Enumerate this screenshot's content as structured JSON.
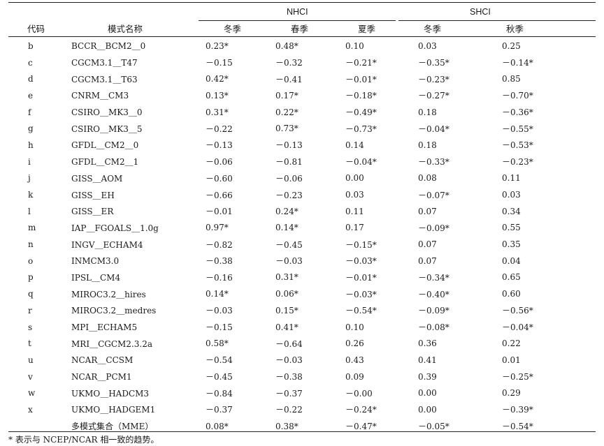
{
  "header": {
    "group_nhci": "NHCI",
    "group_shci": "SHCI",
    "col_code": "代码",
    "col_model": "模式名称",
    "nhci_winter": "冬季",
    "nhci_spring": "春季",
    "nhci_summer": "夏季",
    "shci_winter": "冬季",
    "shci_autumn": "秋季"
  },
  "rows": [
    {
      "code": "b",
      "model": "BCCR＿BCM2＿0",
      "v": [
        "0.23*",
        "0.48*",
        "0.10",
        "0.03",
        "0.25"
      ]
    },
    {
      "code": "c",
      "model": "CGCM3.1＿T47",
      "v": [
        "－0.15",
        "－0.32",
        "－0.21*",
        "－0.35*",
        "－0.14*"
      ]
    },
    {
      "code": "d",
      "model": "CGCM3.1＿T63",
      "v": [
        "0.42*",
        "－0.41",
        "－0.01*",
        "－0.23*",
        "0.85"
      ]
    },
    {
      "code": "e",
      "model": "CNRM＿CM3",
      "v": [
        "0.13*",
        "0.17*",
        "－0.18*",
        "－0.27*",
        "－0.70*"
      ]
    },
    {
      "code": "f",
      "model": "CSIRO＿MK3＿0",
      "v": [
        "0.31*",
        "0.22*",
        "－0.49*",
        "0.18",
        "－0.36*"
      ]
    },
    {
      "code": "g",
      "model": "CSIRO＿MK3＿5",
      "v": [
        "－0.22",
        "0.73*",
        "－0.73*",
        "－0.04*",
        "－0.55*"
      ]
    },
    {
      "code": "h",
      "model": "GFDL＿CM2＿0",
      "v": [
        "－0.13",
        "－0.13",
        "0.14",
        "0.18",
        "－0.53*"
      ]
    },
    {
      "code": "i",
      "model": "GFDL＿CM2＿1",
      "v": [
        "－0.06",
        "－0.81",
        "－0.04*",
        "－0.33*",
        "－0.23*"
      ]
    },
    {
      "code": "j",
      "model": "GISS＿AOM",
      "v": [
        "－0.60",
        "－0.06",
        "0.00",
        "0.08",
        "0.11"
      ]
    },
    {
      "code": "k",
      "model": "GISS＿EH",
      "v": [
        "－0.66",
        "－0.23",
        "0.03",
        "－0.07*",
        "0.03"
      ]
    },
    {
      "code": "l",
      "model": "GISS＿ER",
      "v": [
        "－0.01",
        "0.24*",
        "0.11",
        "0.07",
        "0.34"
      ]
    },
    {
      "code": "m",
      "model": "IAP＿FGOALS＿1.0g",
      "v": [
        "0.97*",
        "0.14*",
        "0.17",
        "－0.09*",
        "0.55"
      ]
    },
    {
      "code": "n",
      "model": "INGV＿ECHAM4",
      "v": [
        "－0.82",
        "－0.45",
        "－0.15*",
        "0.07",
        "0.35"
      ]
    },
    {
      "code": "o",
      "model": "INMCM3.0",
      "v": [
        "－0.38",
        "－0.03",
        "－0.03*",
        "0.07",
        "0.04"
      ]
    },
    {
      "code": "p",
      "model": "IPSL＿CM4",
      "v": [
        "－0.16",
        "0.31*",
        "－0.01*",
        "－0.34*",
        "0.65"
      ]
    },
    {
      "code": "q",
      "model": "MIROC3.2＿hires",
      "v": [
        "0.14*",
        "0.06*",
        "－0.03*",
        "－0.40*",
        "0.60"
      ]
    },
    {
      "code": "r",
      "model": "MIROC3.2＿medres",
      "v": [
        "－0.03",
        "0.15*",
        "－0.54*",
        "－0.09*",
        "－0.56*"
      ]
    },
    {
      "code": "s",
      "model": "MPI＿ECHAM5",
      "v": [
        "－0.15",
        "0.41*",
        "0.10",
        "－0.08*",
        "－0.04*"
      ]
    },
    {
      "code": "t",
      "model": "MRI＿CGCM2.3.2a",
      "v": [
        "0.58*",
        "－0.64",
        "0.26",
        "0.36",
        "0.22"
      ]
    },
    {
      "code": "u",
      "model": "NCAR＿CCSM",
      "v": [
        "－0.54",
        "－0.03",
        "0.43",
        "0.41",
        "0.01"
      ]
    },
    {
      "code": "v",
      "model": "NCAR＿PCM1",
      "v": [
        "－0.45",
        "－0.38",
        "0.09",
        "0.39",
        "－0.25*"
      ]
    },
    {
      "code": "w",
      "model": "UKMO＿HADCM3",
      "v": [
        "－0.84",
        "－0.37",
        "－0.00",
        "0.00",
        "0.29"
      ]
    },
    {
      "code": "x",
      "model": "UKMO＿HADGEM1",
      "v": [
        "－0.37",
        "－0.22",
        "－0.24*",
        "0.00",
        "－0.39*"
      ]
    },
    {
      "code": "",
      "model": "多模式集合（MME）",
      "v": [
        "0.08*",
        "0.38*",
        "－0.47*",
        "－0.05*",
        "－0.54*"
      ]
    }
  ],
  "footnote": "* 表示与 NCEP/NCAR 相一致的趋势。"
}
